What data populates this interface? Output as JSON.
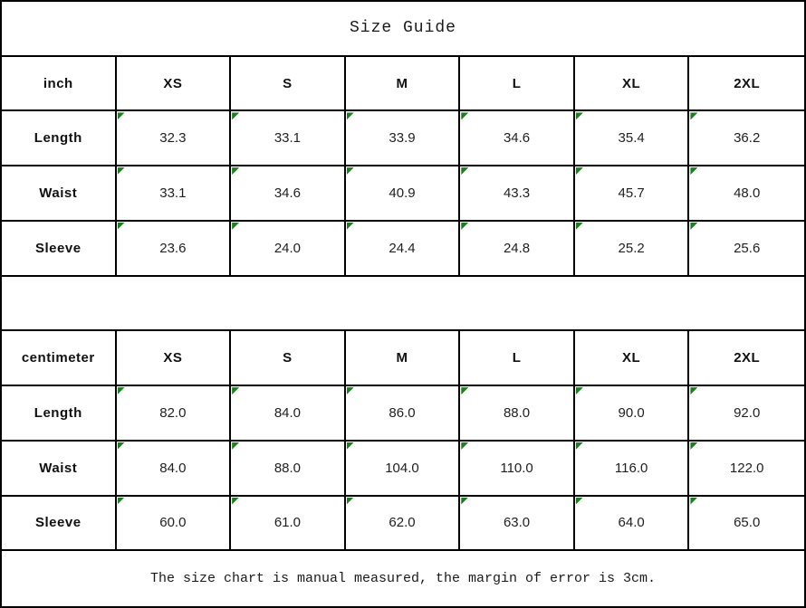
{
  "title": "Size Guide",
  "columns": [
    "XS",
    "S",
    "M",
    "L",
    "XL",
    "2XL"
  ],
  "tables": [
    {
      "unit": "inch",
      "rows": [
        {
          "label": "Length",
          "values": [
            "32.3",
            "33.1",
            "33.9",
            "34.6",
            "35.4",
            "36.2"
          ]
        },
        {
          "label": "Waist",
          "values": [
            "33.1",
            "34.6",
            "40.9",
            "43.3",
            "45.7",
            "48.0"
          ]
        },
        {
          "label": "Sleeve",
          "values": [
            "23.6",
            "24.0",
            "24.4",
            "24.8",
            "25.2",
            "25.6"
          ]
        }
      ]
    },
    {
      "unit": "centimeter",
      "rows": [
        {
          "label": "Length",
          "values": [
            "82.0",
            "84.0",
            "86.0",
            "88.0",
            "90.0",
            "92.0"
          ]
        },
        {
          "label": "Waist",
          "values": [
            "84.0",
            "88.0",
            "104.0",
            "110.0",
            "116.0",
            "122.0"
          ]
        },
        {
          "label": "Sleeve",
          "values": [
            "60.0",
            "61.0",
            "62.0",
            "63.0",
            "64.0",
            "65.0"
          ]
        }
      ]
    }
  ],
  "footer": "The size chart is manual measured, the margin of error is 3cm.",
  "colors": {
    "border": "#000000",
    "marker": "#1e7d1e",
    "text": "#212121",
    "background": "#ffffff"
  },
  "chart_data": [
    {
      "type": "table",
      "title": "Size Guide",
      "unit": "inch",
      "columns": [
        "XS",
        "S",
        "M",
        "L",
        "XL",
        "2XL"
      ],
      "rows": [
        {
          "label": "Length",
          "values": [
            32.3,
            33.1,
            33.9,
            34.6,
            35.4,
            36.2
          ]
        },
        {
          "label": "Waist",
          "values": [
            33.1,
            34.6,
            40.9,
            43.3,
            45.7,
            48.0
          ]
        },
        {
          "label": "Sleeve",
          "values": [
            23.6,
            24.0,
            24.4,
            24.8,
            25.2,
            25.6
          ]
        }
      ]
    },
    {
      "type": "table",
      "title": "Size Guide",
      "unit": "centimeter",
      "columns": [
        "XS",
        "S",
        "M",
        "L",
        "XL",
        "2XL"
      ],
      "rows": [
        {
          "label": "Length",
          "values": [
            82.0,
            84.0,
            86.0,
            88.0,
            90.0,
            92.0
          ]
        },
        {
          "label": "Waist",
          "values": [
            84.0,
            88.0,
            104.0,
            110.0,
            116.0,
            122.0
          ]
        },
        {
          "label": "Sleeve",
          "values": [
            60.0,
            61.0,
            62.0,
            63.0,
            64.0,
            65.0
          ]
        }
      ],
      "note": "The size chart is manual measured, the margin of error is 3cm."
    }
  ]
}
